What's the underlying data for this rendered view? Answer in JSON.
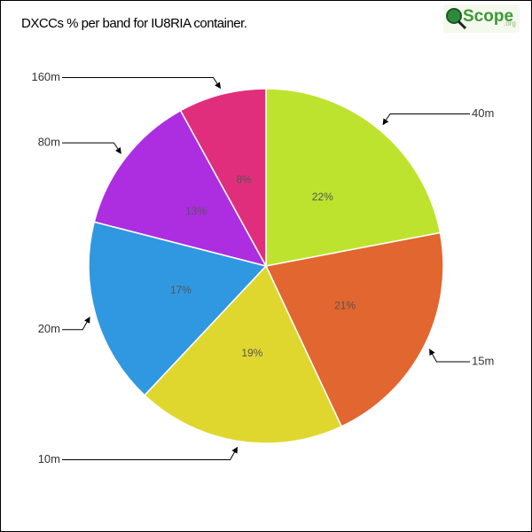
{
  "chart_data": {
    "type": "pie",
    "title": "DXCCs % per band for IU8RIA container.",
    "categories": [
      "40m",
      "15m",
      "10m",
      "20m",
      "80m",
      "160m"
    ],
    "values": [
      22,
      21,
      19,
      17,
      13,
      8
    ],
    "value_labels": [
      "22%",
      "21%",
      "19%",
      "17%",
      "13%",
      "8%"
    ],
    "colors": [
      "#bde32e",
      "#e2662f",
      "#e0d72e",
      "#3098e0",
      "#ad2ee0",
      "#e02e7c"
    ]
  },
  "logo": {
    "text": "Scope",
    "suffix": ".org"
  }
}
